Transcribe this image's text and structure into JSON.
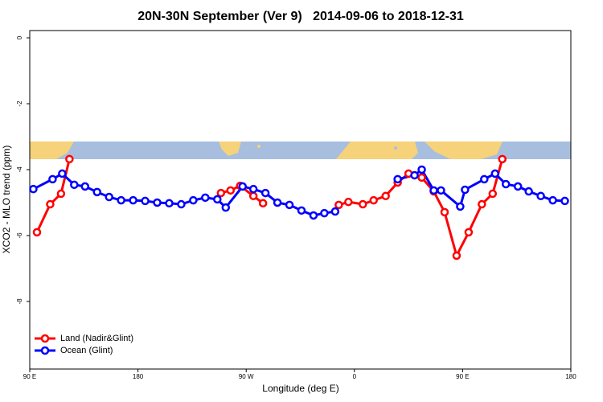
{
  "chart_data": {
    "type": "line",
    "title": "20N-30N September (Ver 9)   2014-09-06 to 2018-12-31",
    "x_label": "Longitude (deg E)",
    "y_label": "XCO2 - MLO trend (ppm)",
    "xlim": [
      90,
      540
    ],
    "xticks": [
      {
        "value": 90,
        "label": "90 E"
      },
      {
        "value": 180,
        "label": "180"
      },
      {
        "value": 270,
        "label": "90 W"
      },
      {
        "value": 360,
        "label": "0"
      },
      {
        "value": 450,
        "label": "90 E"
      },
      {
        "value": 540,
        "label": "180"
      }
    ],
    "ylim": [
      -10.05,
      0.22
    ],
    "yticks": [
      0,
      -2,
      -4,
      -6,
      -8
    ],
    "legend": "bottom-left",
    "series": [
      {
        "name": "Land (Nadir&Glint)",
        "color": "#ff0000",
        "x": [
          96,
          107,
          116,
          123,
          180,
          249,
          257,
          265,
          276,
          284,
          310,
          347,
          355,
          367,
          376,
          386,
          396,
          405,
          416,
          426,
          435,
          445,
          455,
          466,
          475,
          483
        ],
        "values": [
          -5.9,
          -5.05,
          -4.73,
          -3.68,
          null,
          -4.71,
          -4.63,
          -4.49,
          -4.8,
          -5.02,
          null,
          -5.07,
          -4.98,
          -5.05,
          -4.93,
          -4.8,
          -4.39,
          -4.12,
          -4.24,
          -4.66,
          -5.29,
          -6.61,
          -5.9,
          -5.05,
          -4.73,
          -3.68
        ]
      },
      {
        "name": "Ocean (Glint)",
        "color": "#0000ff",
        "x": [
          93,
          109,
          117,
          127,
          136,
          146,
          156,
          166,
          176,
          186,
          196,
          206,
          216,
          226,
          236,
          246,
          253,
          267,
          276,
          286,
          296,
          306,
          316,
          326,
          335,
          344,
          370,
          396,
          410,
          416,
          426,
          432,
          448,
          452,
          468,
          477,
          486,
          496,
          505,
          515,
          525,
          535
        ],
        "values": [
          -4.59,
          -4.29,
          -4.12,
          -4.46,
          -4.51,
          -4.68,
          -4.83,
          -4.93,
          -4.93,
          -4.95,
          -5.0,
          -5.02,
          -5.05,
          -4.93,
          -4.85,
          -4.9,
          -5.15,
          -4.51,
          -4.59,
          -4.71,
          -5.0,
          -5.07,
          -5.24,
          -5.39,
          -5.32,
          -5.27,
          null,
          -4.29,
          -4.17,
          -4.0,
          -4.63,
          -4.63,
          -5.12,
          -4.61,
          -4.29,
          -4.12,
          -4.44,
          -4.51,
          -4.66,
          -4.8,
          -4.93,
          -4.95
        ]
      }
    ]
  }
}
